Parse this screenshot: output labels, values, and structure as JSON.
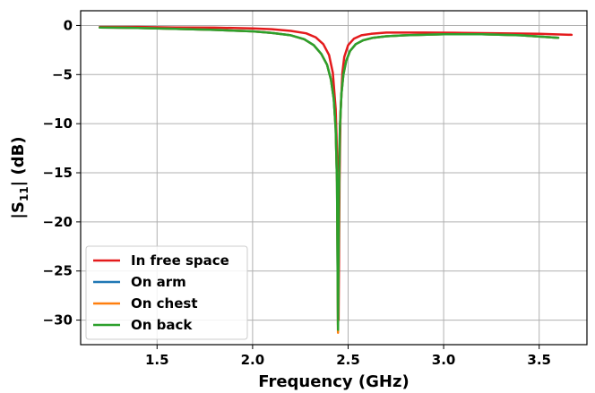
{
  "chart_data": {
    "type": "line",
    "xlabel": "Frequency (GHz)",
    "ylabel_parts": {
      "prefix": "|S",
      "subscript": "11",
      "suffix": "| (dB)"
    },
    "xlim": [
      1.1,
      3.75
    ],
    "ylim": [
      -32.5,
      1.5
    ],
    "xticks": [
      1.5,
      2.0,
      2.5,
      3.0,
      3.5
    ],
    "xtick_labels": [
      "1.5",
      "2.0",
      "2.5",
      "3.0",
      "3.5"
    ],
    "yticks": [
      0,
      -5,
      -10,
      -15,
      -20,
      -25,
      -30
    ],
    "ytick_labels": [
      "0",
      "−5",
      "−10",
      "−15",
      "−20",
      "−25",
      "−30"
    ],
    "grid": true,
    "legend_position": "bottom-left",
    "series": [
      {
        "name": "In free space",
        "color": "#e41a1c",
        "x": [
          1.2,
          1.4,
          1.6,
          1.8,
          2.0,
          2.1,
          2.2,
          2.28,
          2.33,
          2.37,
          2.4,
          2.42,
          2.435,
          2.445,
          2.45,
          2.455,
          2.46,
          2.47,
          2.48,
          2.5,
          2.53,
          2.57,
          2.62,
          2.7,
          2.9,
          3.1,
          3.3,
          3.5,
          3.67
        ],
        "y": [
          -0.15,
          -0.15,
          -0.2,
          -0.22,
          -0.3,
          -0.38,
          -0.55,
          -0.8,
          -1.2,
          -1.9,
          -3.0,
          -4.8,
          -8.5,
          -15.0,
          -30.0,
          -16.0,
          -9.0,
          -4.8,
          -3.2,
          -2.0,
          -1.35,
          -1.0,
          -0.85,
          -0.72,
          -0.72,
          -0.75,
          -0.8,
          -0.85,
          -0.95
        ]
      },
      {
        "name": "On arm",
        "color": "#1f77b4",
        "x": [
          1.2,
          1.4,
          1.6,
          1.8,
          2.0,
          2.1,
          2.2,
          2.27,
          2.32,
          2.36,
          2.39,
          2.41,
          2.425,
          2.435,
          2.442,
          2.447,
          2.452,
          2.457,
          2.465,
          2.475,
          2.49,
          2.51,
          2.54,
          2.58,
          2.63,
          2.7,
          2.8,
          3.0,
          3.2,
          3.4,
          3.6
        ],
        "y": [
          -0.2,
          -0.25,
          -0.35,
          -0.45,
          -0.6,
          -0.75,
          -1.0,
          -1.4,
          -2.0,
          -2.9,
          -4.0,
          -5.5,
          -7.5,
          -10.5,
          -16.0,
          -30.5,
          -17.0,
          -10.5,
          -7.0,
          -5.0,
          -3.6,
          -2.6,
          -1.9,
          -1.5,
          -1.25,
          -1.1,
          -1.0,
          -0.9,
          -0.9,
          -1.0,
          -1.25
        ]
      },
      {
        "name": "On chest",
        "color": "#ff7f0e",
        "x": [
          1.2,
          1.4,
          1.6,
          1.8,
          2.0,
          2.1,
          2.2,
          2.27,
          2.32,
          2.36,
          2.39,
          2.41,
          2.425,
          2.435,
          2.442,
          2.447,
          2.452,
          2.457,
          2.465,
          2.475,
          2.49,
          2.51,
          2.54,
          2.58,
          2.63,
          2.7,
          2.8,
          3.0,
          3.2,
          3.4,
          3.6
        ],
        "y": [
          -0.2,
          -0.25,
          -0.35,
          -0.45,
          -0.6,
          -0.75,
          -1.0,
          -1.4,
          -2.0,
          -2.9,
          -4.0,
          -5.5,
          -7.5,
          -10.5,
          -16.0,
          -31.3,
          -17.0,
          -10.5,
          -7.0,
          -5.0,
          -3.6,
          -2.6,
          -1.9,
          -1.5,
          -1.25,
          -1.1,
          -1.0,
          -0.9,
          -0.9,
          -1.0,
          -1.25
        ]
      },
      {
        "name": "On back",
        "color": "#2ca02c",
        "x": [
          1.2,
          1.4,
          1.6,
          1.8,
          2.0,
          2.1,
          2.2,
          2.27,
          2.32,
          2.36,
          2.39,
          2.41,
          2.425,
          2.435,
          2.442,
          2.447,
          2.452,
          2.457,
          2.465,
          2.475,
          2.49,
          2.51,
          2.54,
          2.58,
          2.63,
          2.7,
          2.8,
          3.0,
          3.2,
          3.4,
          3.6
        ],
        "y": [
          -0.2,
          -0.25,
          -0.35,
          -0.45,
          -0.6,
          -0.75,
          -1.0,
          -1.4,
          -2.0,
          -2.9,
          -4.0,
          -5.5,
          -7.5,
          -10.5,
          -16.0,
          -31.0,
          -17.0,
          -10.5,
          -7.0,
          -5.0,
          -3.6,
          -2.6,
          -1.9,
          -1.5,
          -1.25,
          -1.1,
          -1.0,
          -0.9,
          -0.9,
          -1.0,
          -1.25
        ]
      }
    ]
  }
}
